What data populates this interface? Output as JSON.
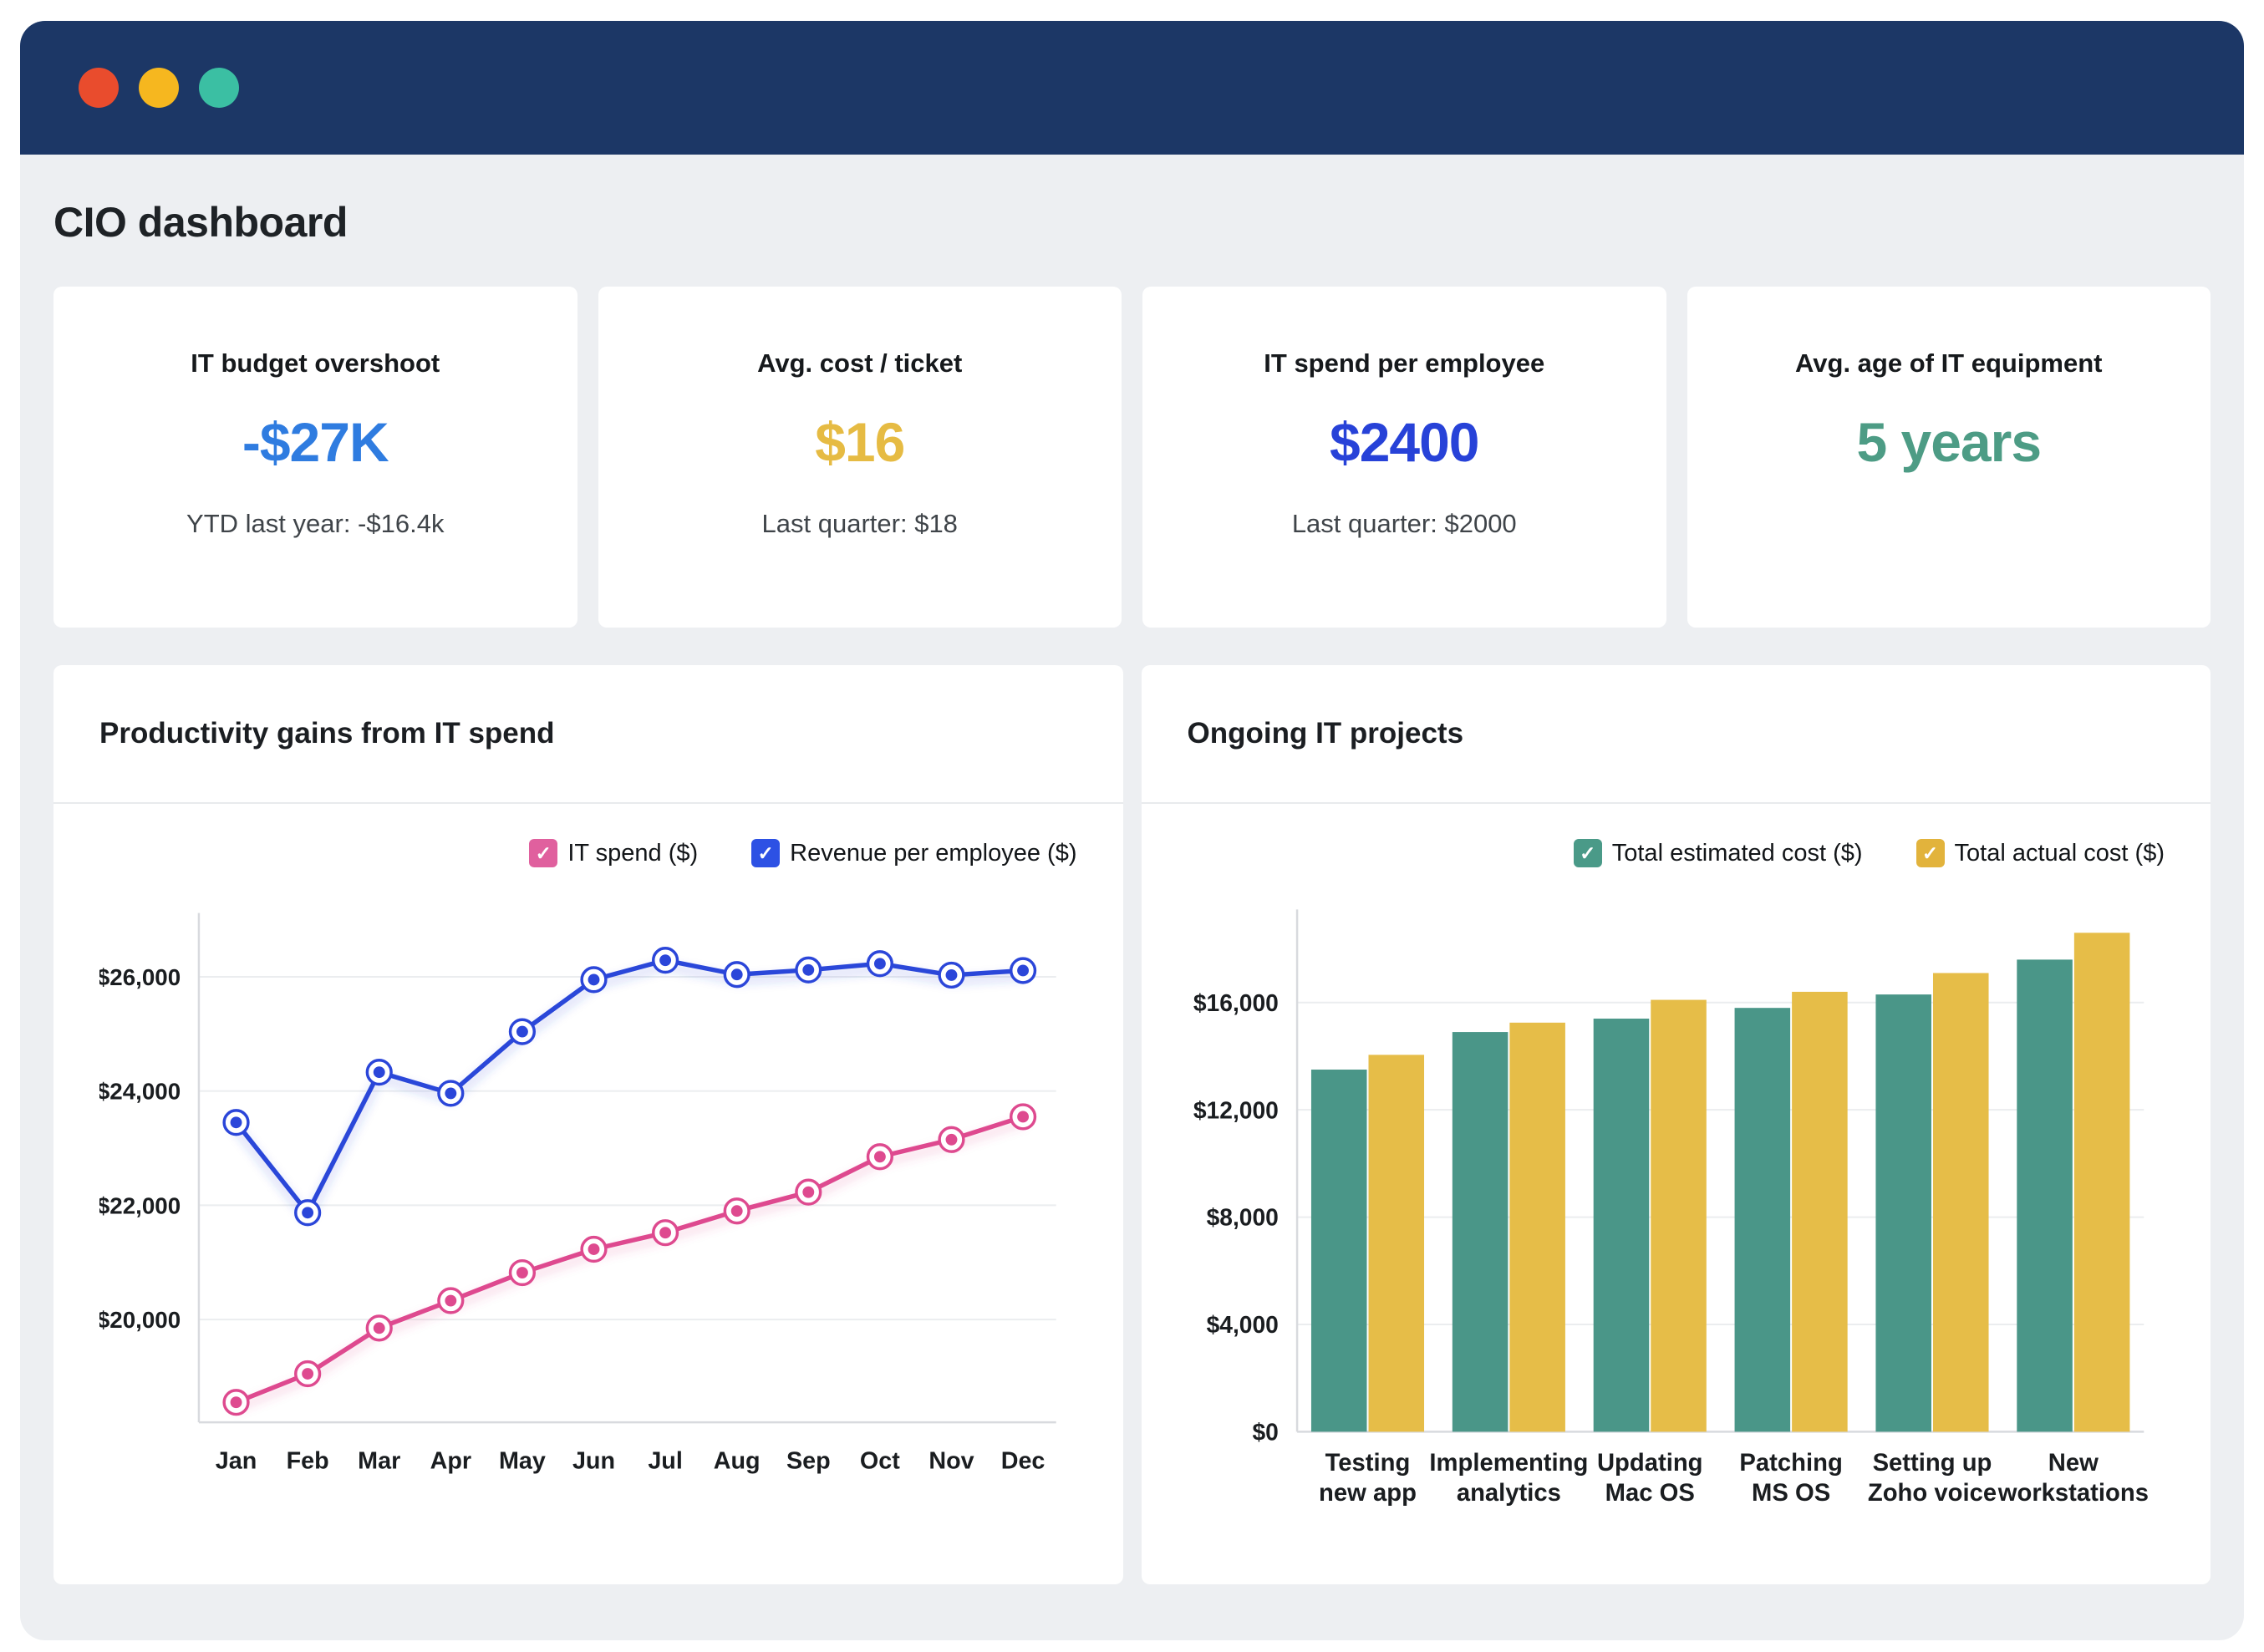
{
  "header": {
    "title": "CIO dashboard"
  },
  "colors": {
    "titlebar": "#1c3766",
    "traffic_red": "#e94c2d",
    "traffic_yellow": "#f6b71f",
    "traffic_teal": "#3bbfa3",
    "background": "#edeff2",
    "card": "#ffffff"
  },
  "kpis": [
    {
      "title": "IT budget overshoot",
      "value": "-$27K",
      "subtext": "YTD last year: -$16.4k",
      "value_color": "#2f7ce0"
    },
    {
      "title": "Avg. cost / ticket",
      "value": "$16",
      "subtext": "Last quarter: $18",
      "value_color": "#e6bb43"
    },
    {
      "title": "IT spend per employee",
      "value": "$2400",
      "subtext": "Last quarter: $2000",
      "value_color": "#2742d8"
    },
    {
      "title": "Avg. age of IT equipment",
      "value": "5 years",
      "subtext": "",
      "value_color": "#4d9c85"
    }
  ],
  "chart_data": [
    {
      "id": "productivity",
      "type": "line",
      "title": "Productivity gains from IT spend",
      "x": [
        "Jan",
        "Feb",
        "Mar",
        "Apr",
        "May",
        "Jun",
        "Jul",
        "Aug",
        "Sep",
        "Oct",
        "Nov",
        "Dec"
      ],
      "series": [
        {
          "name": "IT spend ($)",
          "color": "#de4a8f",
          "swatch": "#e0609e",
          "values": [
            18550,
            19050,
            19850,
            20330,
            20820,
            21230,
            21520,
            21900,
            22230,
            22850,
            23150,
            23550
          ]
        },
        {
          "name": "Revenue per employee ($)",
          "color": "#2b46d9",
          "swatch": "#2d51e4",
          "values": [
            23450,
            21870,
            24330,
            23960,
            25040,
            25950,
            26290,
            26040,
            26120,
            26230,
            26030,
            26110
          ]
        }
      ],
      "ylim": [
        18200,
        26900
      ],
      "yticks": [
        20000,
        22000,
        24000,
        26000
      ],
      "grid": "horizontal",
      "legend_position": "top-right"
    },
    {
      "id": "projects",
      "type": "bar",
      "title": "Ongoing IT projects",
      "categories": [
        "Testing\nnew app",
        "Implementing\nanalytics",
        "Updating\nMac OS",
        "Patching\nMS OS",
        "Setting up\nZoho voice",
        "New\nworkstations"
      ],
      "series": [
        {
          "name": "Total estimated cost ($)",
          "color": "#4a9688",
          "swatch": "#4a9a88",
          "values": [
            13500,
            14900,
            15400,
            15800,
            16300,
            17600
          ]
        },
        {
          "name": "Total actual cost ($)",
          "color": "#e6bd48",
          "swatch": "#e2b33c",
          "values": [
            14050,
            15250,
            16100,
            16400,
            17100,
            18600
          ]
        }
      ],
      "ylim": [
        0,
        19000
      ],
      "yticks": [
        0,
        4000,
        8000,
        12000,
        16000
      ],
      "grid": "horizontal",
      "legend_position": "top-right"
    }
  ]
}
